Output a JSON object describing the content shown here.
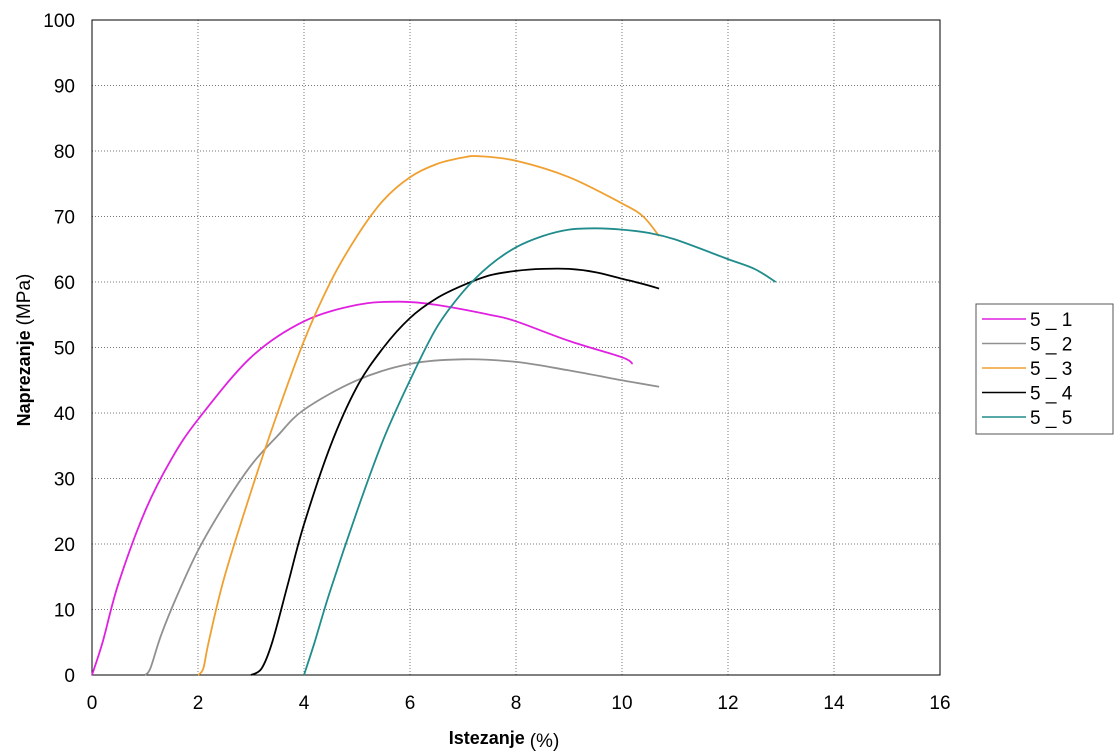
{
  "chart_data": {
    "type": "line",
    "xlabel": {
      "bold": "Istezanje",
      "unit": "(%)"
    },
    "ylabel": {
      "bold": "Naprezanje",
      "unit": "(MPa)"
    },
    "xlim": [
      0,
      16
    ],
    "ylim": [
      0,
      100
    ],
    "x_ticks": [
      "0",
      "2",
      "4",
      "6",
      "8",
      "10",
      "12",
      "14",
      "16"
    ],
    "y_ticks": [
      "0",
      "10",
      "20",
      "30",
      "40",
      "50",
      "60",
      "70",
      "80",
      "90",
      "100"
    ],
    "grid": true,
    "legend_position": "right",
    "series": [
      {
        "name": "5 _ 1",
        "color": "#e020e0",
        "x": [
          0,
          0.2,
          0.5,
          1.0,
          1.5,
          2.0,
          3.0,
          4.0,
          5.0,
          5.8,
          6.5,
          7.5,
          8.0,
          9.0,
          10.0,
          10.2
        ],
        "y": [
          0,
          5,
          14,
          25,
          33,
          39,
          48.5,
          54,
          56.5,
          57,
          56.5,
          55,
          54,
          51,
          48.5,
          47.5
        ]
      },
      {
        "name": "5 _ 2",
        "color": "#909090",
        "x": [
          1.0,
          1.1,
          1.3,
          1.6,
          2.0,
          2.5,
          3.0,
          3.5,
          4.0,
          5.0,
          6.0,
          7.0,
          8.0,
          9.0,
          10.0,
          10.7
        ],
        "y": [
          0,
          1,
          6,
          12,
          19,
          26,
          32,
          36.5,
          40.5,
          45,
          47.5,
          48.2,
          47.8,
          46.5,
          45,
          44
        ]
      },
      {
        "name": "5 _ 3",
        "color": "#f0a030",
        "x": [
          2.0,
          2.1,
          2.2,
          2.5,
          3.0,
          3.5,
          4.0,
          4.5,
          5.0,
          5.5,
          6.0,
          6.5,
          7.0,
          7.3,
          8.0,
          9.0,
          10.0,
          10.4,
          10.7
        ],
        "y": [
          0,
          1,
          5,
          15,
          28,
          40,
          51,
          60,
          67,
          72.5,
          76,
          78,
          79,
          79.2,
          78.5,
          76,
          72,
          70,
          67
        ]
      },
      {
        "name": "5 _ 4",
        "color": "#000000",
        "x": [
          3.0,
          3.2,
          3.4,
          3.7,
          4.0,
          4.5,
          5.0,
          5.5,
          6.0,
          6.5,
          7.0,
          7.5,
          8.0,
          8.5,
          9.0,
          9.5,
          10.0,
          10.4,
          10.7
        ],
        "y": [
          0,
          1,
          5,
          14,
          23,
          35,
          44,
          50,
          54.5,
          57.5,
          59.5,
          61,
          61.7,
          62,
          62,
          61.5,
          60.5,
          59.7,
          59
        ]
      },
      {
        "name": "5 _ 5",
        "color": "#208c8c",
        "x": [
          4.0,
          4.2,
          4.5,
          5.0,
          5.5,
          6.0,
          6.5,
          7.0,
          7.5,
          8.0,
          8.5,
          9.0,
          9.5,
          10.0,
          10.5,
          11.0,
          12.0,
          12.5,
          12.9
        ],
        "y": [
          0,
          5,
          13,
          25,
          36,
          45,
          53,
          58.5,
          62.5,
          65.3,
          67,
          68,
          68.2,
          68,
          67.5,
          66.5,
          63.5,
          62,
          60
        ]
      }
    ]
  }
}
